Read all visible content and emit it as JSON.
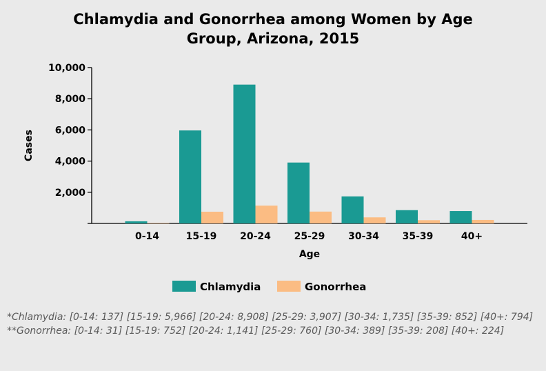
{
  "chart_data": {
    "type": "bar",
    "title_lines": [
      "Chlamydia and Gonorrhea among Women by Age",
      "Group, Arizona, 2015"
    ],
    "xlabel": "Age",
    "ylabel": "Cases",
    "categories": [
      "0-14",
      "15-19",
      "20-24",
      "25-29",
      "30-34",
      "35-39",
      "40+"
    ],
    "series": [
      {
        "name": "Chlamydia",
        "color": "#1a9a93",
        "values": [
          137,
          5966,
          8908,
          3907,
          1735,
          852,
          794
        ]
      },
      {
        "name": "Gonorrhea",
        "color": "#fbbc83",
        "values": [
          31,
          752,
          1141,
          760,
          389,
          208,
          224
        ]
      }
    ],
    "ylim": [
      0,
      10000
    ],
    "yticks": [
      0,
      2000,
      4000,
      6000,
      8000,
      10000
    ],
    "ytick_labels": [
      "",
      "2,000",
      "4,000",
      "6,000",
      "8,000",
      "10,000"
    ],
    "grid": false,
    "legend": "bottom-center"
  },
  "footnotes": [
    "*Chlamydia: [0-14: 137] [15-19: 5,966] [20-24: 8,908] [25-29: 3,907] [30-34: 1,735] [35-39: 852] [40+: 794]",
    "**Gonorrhea: [0-14: 31] [15-19: 752] [20-24: 1,141] [25-29: 760] [30-34: 389] [35-39: 208] [40+: 224]"
  ]
}
